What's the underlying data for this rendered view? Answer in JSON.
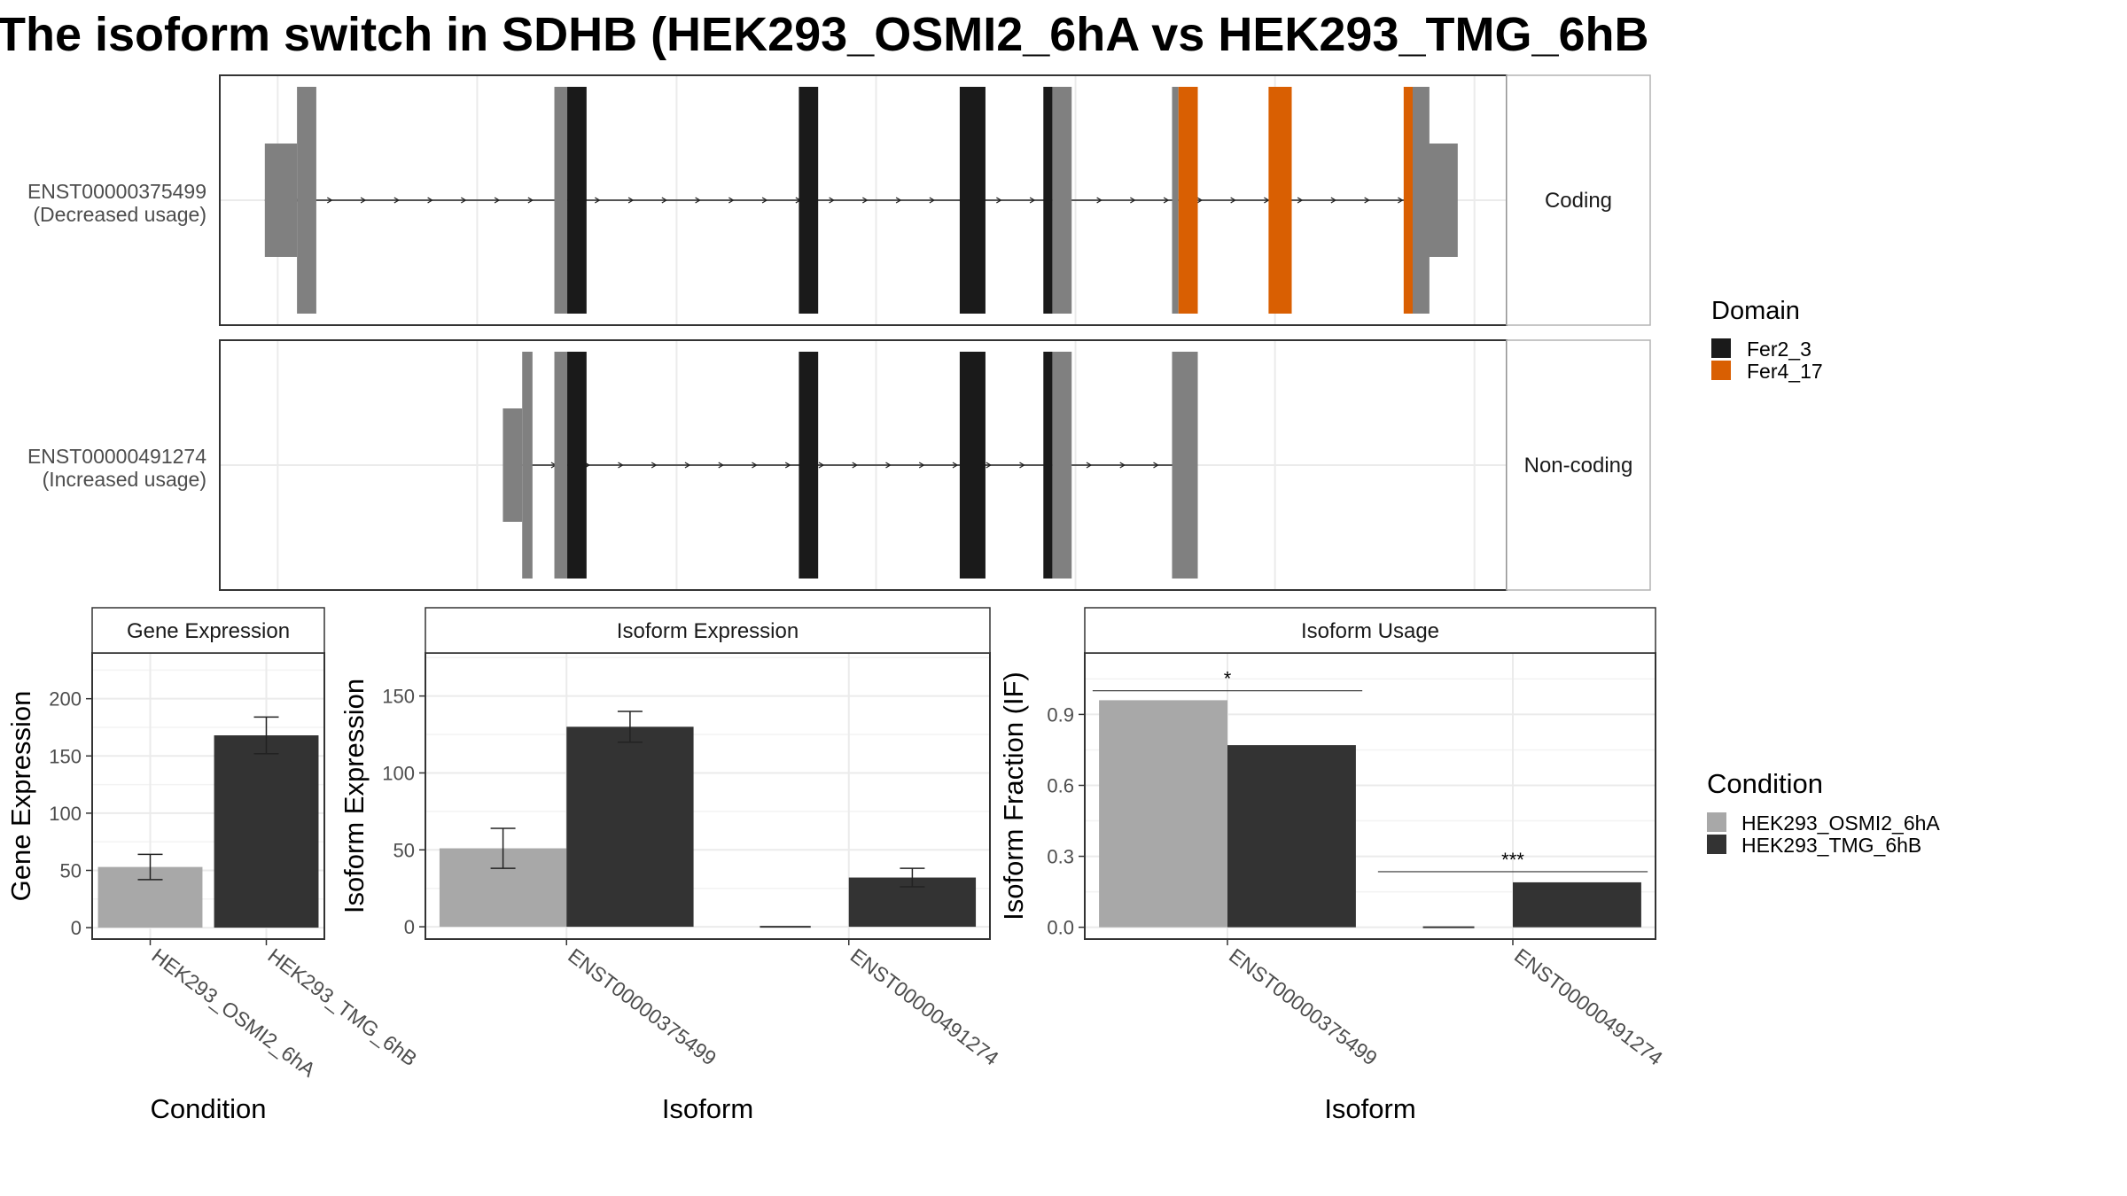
{
  "title": "The isoform switch in SDHB (HEK293_OSMI2_6hA vs HEK293_TMG_6hB",
  "colors": {
    "domain_fer2": "#1a1a1a",
    "domain_fer4": "#d95f02",
    "utr": "#808080",
    "condition_a": "#a8a8a8",
    "condition_b": "#333333",
    "grid": "#ebebeb",
    "panel_border": "#333333",
    "strip_border": "#b3b3b3"
  },
  "transcripts": [
    {
      "id": "ENST00000375499",
      "usage": "(Decreased usage)",
      "facet": "Coding",
      "intron_span": [
        0.035,
        0.945
      ],
      "utr_small": [
        [
          0.035,
          0.06
        ]
      ],
      "utr_large": [
        [
          0.933,
          0.962
        ]
      ],
      "exons": [
        {
          "range": [
            0.06,
            0.075
          ],
          "domain": "utr"
        },
        {
          "range": [
            0.26,
            0.27
          ],
          "domain": "utr"
        },
        {
          "range": [
            0.27,
            0.285
          ],
          "domain": "Fer2_3"
        },
        {
          "range": [
            0.45,
            0.465
          ],
          "domain": "Fer2_3"
        },
        {
          "range": [
            0.575,
            0.595
          ],
          "domain": "Fer2_3"
        },
        {
          "range": [
            0.64,
            0.647
          ],
          "domain": "Fer2_3"
        },
        {
          "range": [
            0.647,
            0.662
          ],
          "domain": "utr"
        },
        {
          "range": [
            0.74,
            0.745
          ],
          "domain": "utr"
        },
        {
          "range": [
            0.745,
            0.76
          ],
          "domain": "Fer4_17"
        },
        {
          "range": [
            0.815,
            0.833
          ],
          "domain": "Fer4_17"
        },
        {
          "range": [
            0.92,
            0.927
          ],
          "domain": "Fer4_17"
        },
        {
          "range": [
            0.927,
            0.94
          ],
          "domain": "utr"
        }
      ]
    },
    {
      "id": "ENST00000491274",
      "usage": "(Increased usage)",
      "facet": "Non-coding",
      "intron_span": [
        0.235,
        0.745
      ],
      "utr_small": [
        [
          0.22,
          0.235
        ]
      ],
      "utr_large": [],
      "exons": [
        {
          "range": [
            0.235,
            0.243
          ],
          "domain": "utr"
        },
        {
          "range": [
            0.26,
            0.27
          ],
          "domain": "utr"
        },
        {
          "range": [
            0.27,
            0.285
          ],
          "domain": "Fer2_3"
        },
        {
          "range": [
            0.45,
            0.465
          ],
          "domain": "Fer2_3"
        },
        {
          "range": [
            0.575,
            0.595
          ],
          "domain": "Fer2_3"
        },
        {
          "range": [
            0.64,
            0.647
          ],
          "domain": "Fer2_3"
        },
        {
          "range": [
            0.647,
            0.662
          ],
          "domain": "utr"
        },
        {
          "range": [
            0.74,
            0.76
          ],
          "domain": "utr"
        }
      ]
    }
  ],
  "domain_legend": {
    "title": "Domain",
    "items": [
      "Fer2_3",
      "Fer4_17"
    ]
  },
  "condition_legend": {
    "title": "Condition",
    "items": [
      "HEK293_OSMI2_6hA",
      "HEK293_TMG_6hB"
    ]
  },
  "chart_data": [
    {
      "type": "bar",
      "title": "Gene Expression",
      "xlabel": "Condition",
      "ylabel": "Gene Expression",
      "categories": [
        "HEK293_OSMI2_6hA",
        "HEK293_TMG_6hB"
      ],
      "values": [
        53,
        168
      ],
      "errors": [
        [
          42,
          64
        ],
        [
          152,
          184
        ]
      ],
      "ylim": [
        -10,
        240
      ],
      "yticks": [
        0,
        50,
        100,
        150,
        200
      ],
      "grid": true
    },
    {
      "type": "bar",
      "title": "Isoform Expression",
      "xlabel": "Isoform",
      "ylabel": "Isoform Expression",
      "categories": [
        "ENST00000375499",
        "ENST00000491274"
      ],
      "series": [
        {
          "name": "HEK293_OSMI2_6hA",
          "values": [
            51,
            0
          ],
          "errors": [
            [
              38,
              64
            ],
            [
              0,
              0
            ]
          ]
        },
        {
          "name": "HEK293_TMG_6hB",
          "values": [
            130,
            32
          ],
          "errors": [
            [
              120,
              140
            ],
            [
              26,
              38
            ]
          ]
        }
      ],
      "ylim": [
        -8,
        178
      ],
      "yticks": [
        0,
        50,
        100,
        150
      ],
      "grid": true
    },
    {
      "type": "bar",
      "title": "Isoform Usage",
      "xlabel": "Isoform",
      "ylabel": "Isoform Fraction (IF)",
      "categories": [
        "ENST00000375499",
        "ENST00000491274"
      ],
      "series": [
        {
          "name": "HEK293_OSMI2_6hA",
          "values": [
            0.96,
            0.0
          ]
        },
        {
          "name": "HEK293_TMG_6hB",
          "values": [
            0.77,
            0.19
          ]
        }
      ],
      "significance": [
        {
          "category": "ENST00000375499",
          "label": "*",
          "y": 1.0
        },
        {
          "category": "ENST00000491274",
          "label": "***",
          "y": 0.235
        }
      ],
      "ylim": [
        -0.05,
        1.16
      ],
      "yticks": [
        "0.0",
        "0.3",
        "0.6",
        "0.9"
      ],
      "grid": true
    }
  ]
}
